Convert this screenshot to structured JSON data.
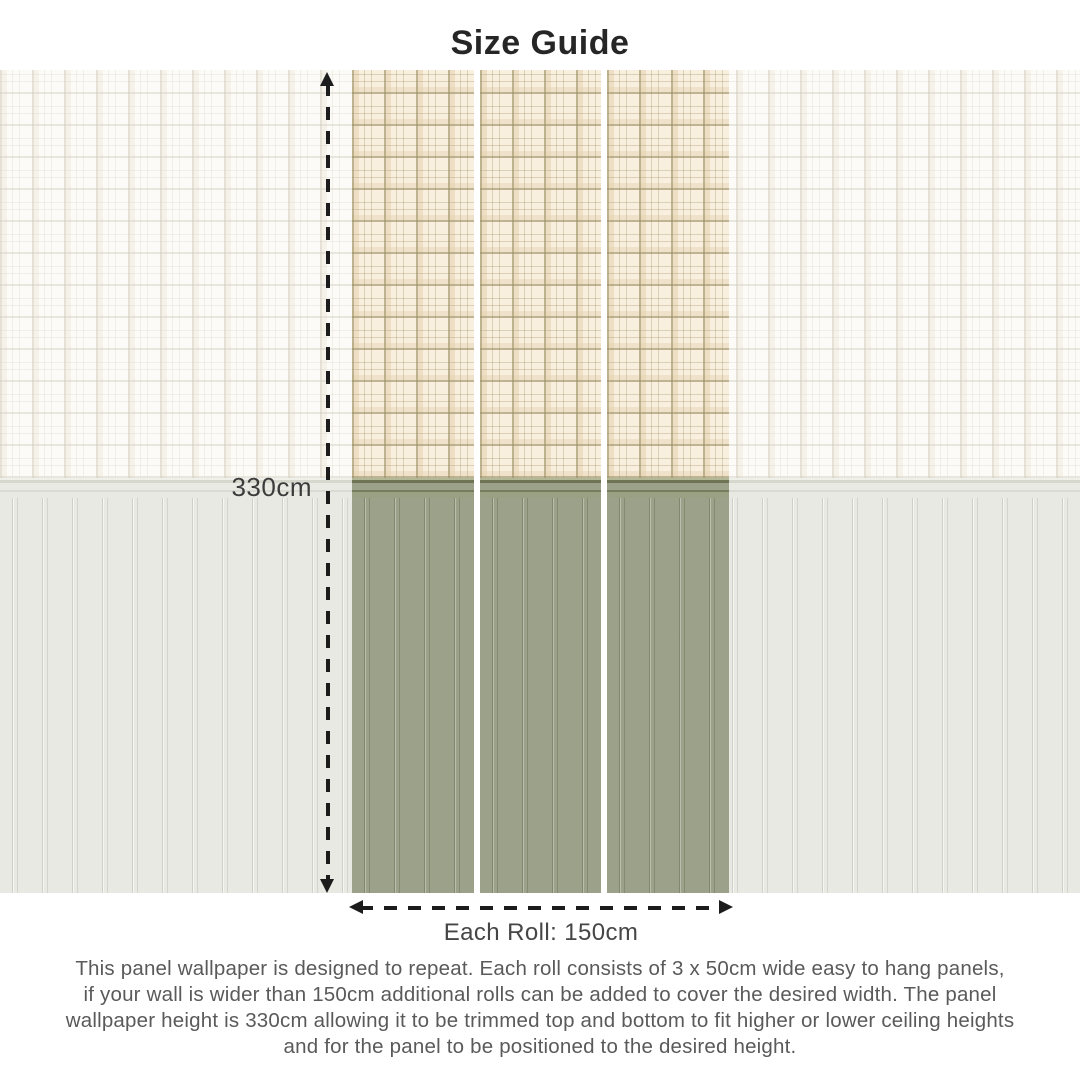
{
  "title": "Size Guide",
  "diagram": {
    "height_label": "330cm",
    "width_label": "Each Roll: 150cm",
    "panel_count": 3,
    "icons": {
      "height_arrow": "vertical-dashed-double-arrow",
      "width_arrow": "horizontal-dashed-double-arrow"
    },
    "colors": {
      "panel_green": "#9ca289",
      "rail_green_dark": "#6e7454",
      "plaid_cream": "#f8efdf",
      "plaid_line": "#968f67",
      "faded_plaid": "#fcfbf8",
      "faded_green": "#e9e9e4",
      "arrow": "#1c1c1c"
    }
  },
  "description": {
    "lines": [
      "This panel wallpaper is designed to repeat. Each roll consists of 3 x 50cm wide easy to hang panels,",
      "if your wall is wider than 150cm additional rolls can be added to cover the desired width. The panel",
      "wallpaper height is 330cm allowing it to be trimmed top and bottom to fit higher or lower ceiling heights",
      "and for the panel to be positioned to the desired height."
    ]
  }
}
